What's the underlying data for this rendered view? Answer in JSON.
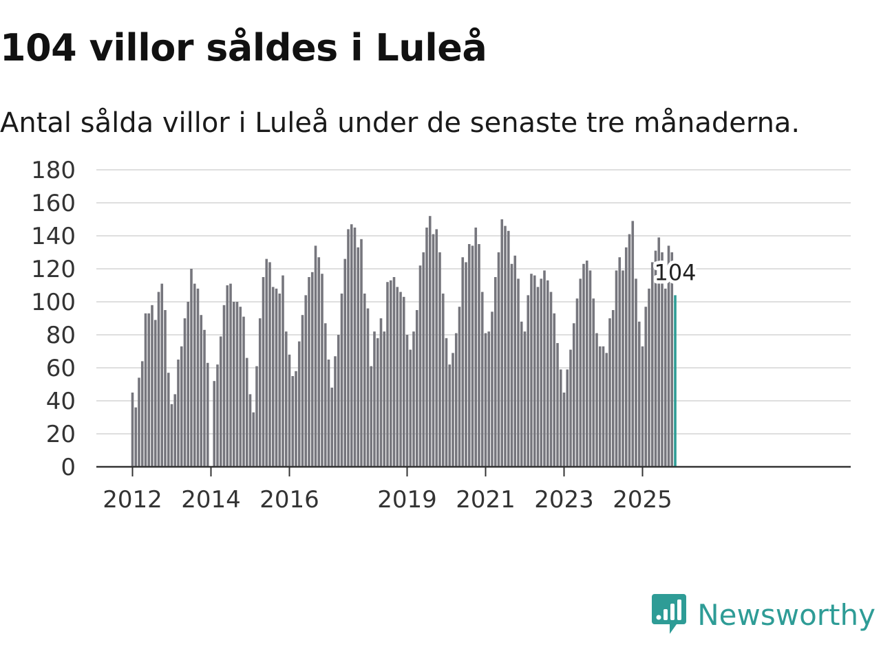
{
  "header": {
    "title": "104 villor såldes i Luleå",
    "subtitle": "Antal sålda villor i Luleå under de senaste tre månaderna."
  },
  "brand": {
    "name": "Newsworthy",
    "icon": "newsworthy-logo-icon"
  },
  "colors": {
    "bar": "#76767d",
    "highlight": "#2e9c96",
    "grid": "#dedede",
    "axis": "#333333"
  },
  "chart_data": {
    "type": "bar",
    "title": "104 villor såldes i Luleå",
    "subtitle": "Antal sålda villor i Luleå under de senaste tre månaderna.",
    "xlabel": "",
    "ylabel": "",
    "ylim": [
      0,
      180
    ],
    "yticks": [
      0,
      20,
      40,
      60,
      80,
      100,
      120,
      140,
      160,
      180
    ],
    "grid": true,
    "start": "2012-01",
    "x_tick_labels": [
      {
        "label": "2012",
        "index": 0
      },
      {
        "label": "2014",
        "index": 24
      },
      {
        "label": "2016",
        "index": 48
      },
      {
        "label": "2019",
        "index": 84
      },
      {
        "label": "2021",
        "index": 108
      },
      {
        "label": "2023",
        "index": 132
      },
      {
        "label": "2025",
        "index": 156
      }
    ],
    "highlight_label": "104",
    "values": [
      45,
      36,
      54,
      64,
      93,
      93,
      98,
      89,
      106,
      111,
      95,
      57,
      38,
      44,
      65,
      73,
      90,
      100,
      120,
      111,
      108,
      92,
      83,
      63,
      0,
      52,
      62,
      79,
      98,
      110,
      111,
      100,
      100,
      97,
      91,
      66,
      44,
      33,
      61,
      90,
      115,
      126,
      124,
      109,
      108,
      105,
      116,
      82,
      68,
      55,
      58,
      76,
      92,
      104,
      115,
      118,
      134,
      127,
      117,
      87,
      65,
      48,
      67,
      80,
      105,
      126,
      144,
      147,
      145,
      133,
      138,
      105,
      96,
      61,
      82,
      78,
      90,
      82,
      112,
      113,
      115,
      109,
      106,
      103,
      80,
      71,
      82,
      95,
      122,
      130,
      145,
      152,
      141,
      144,
      130,
      105,
      78,
      62,
      69,
      81,
      97,
      127,
      124,
      135,
      134,
      145,
      135,
      106,
      81,
      82,
      94,
      115,
      130,
      150,
      146,
      143,
      123,
      128,
      114,
      88,
      82,
      104,
      117,
      116,
      109,
      114,
      119,
      113,
      106,
      93,
      75,
      59,
      45,
      59,
      71,
      87,
      102,
      114,
      123,
      125,
      119,
      102,
      81,
      73,
      73,
      69,
      90,
      95,
      119,
      127,
      119,
      133,
      141,
      149,
      114,
      88,
      73,
      97,
      108,
      124,
      131,
      139,
      130,
      108,
      134,
      130,
      104
    ]
  }
}
